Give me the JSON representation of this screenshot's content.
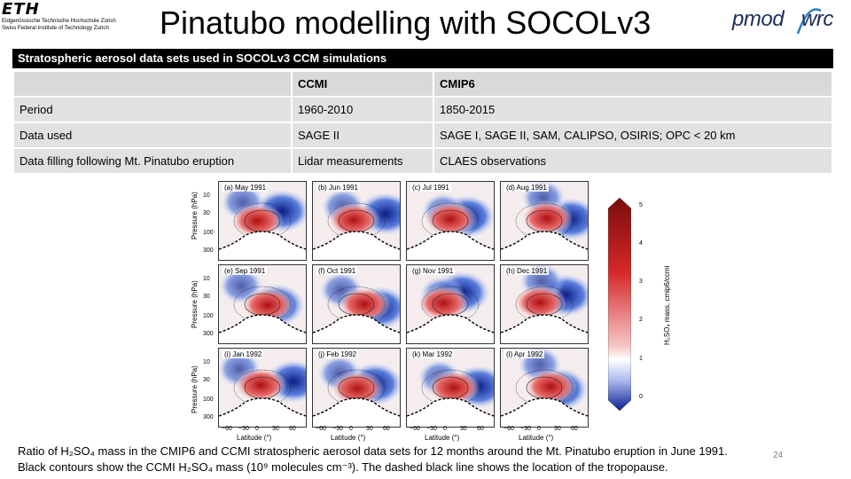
{
  "header": {
    "eth_logo_word": "ETH",
    "eth_logo_line1": "Eidgenössische Technische Hochschule Zürich",
    "eth_logo_line2": "Swiss Federal Institute of Technology Zurich",
    "title": "Pinatubo modelling with SOCOLv3",
    "pmod_logo_left": "pmod",
    "pmod_logo_right": "wrc",
    "pmod_colors": {
      "text": "#1d2d5a",
      "arc": "#2a7fc4"
    }
  },
  "table": {
    "caption": "Stratospheric aerosol data sets used in SOCOLv3 CCM simulations",
    "columns": [
      "",
      "CCMI",
      "CMIP6"
    ],
    "rows": [
      [
        "Period",
        "1960-2010",
        "1850-2015"
      ],
      [
        "Data used",
        "SAGE II",
        "SAGE I, SAGE II, SAM, CALIPSO, OSIRIS; OPC < 20 km"
      ],
      [
        "Data filling following Mt. Pinatubo eruption",
        "Lidar measurements",
        "CLAES observations"
      ]
    ]
  },
  "figure": {
    "ylabel": "Pressure (hPa)",
    "yticks": [
      "10",
      "30",
      "100",
      "300"
    ],
    "xlabel": "Latitude (°)",
    "xticks": [
      "−60",
      "−30",
      "0",
      "30",
      "60"
    ],
    "panels": [
      "(a) May 1991",
      "(b) Jun 1991",
      "(c) Jul 1991",
      "(d) Aug 1991",
      "(e) Sep 1991",
      "(f) Oct 1991",
      "(g) Nov 1991",
      "(h) Dec 1991",
      "(i) Jan 1992",
      "(j) Feb 1992",
      "(k) Mar 1992",
      "(l) Apr 1992"
    ],
    "colorbar": {
      "label": "H₂SO₄ mass, cmip6/ccmi",
      "ticks": [
        "5",
        "4",
        "3",
        "2",
        "1",
        "0"
      ],
      "colors": {
        "high": "#7a0c0c",
        "mid": "#ffffff",
        "low": "#0a1e8c"
      }
    }
  },
  "caption": {
    "line1": "Ratio of H₂SO₄ mass in the CMIP6 and CCMI stratospheric aerosol data sets for 12 months around the Mt. Pinatubo eruption in June 1991.",
    "line2": "Black contours show the CCMI H₂SO₄ mass (10⁹ molecules cm⁻³). The dashed black line shows the location of the tropopause."
  },
  "page_number": "24"
}
